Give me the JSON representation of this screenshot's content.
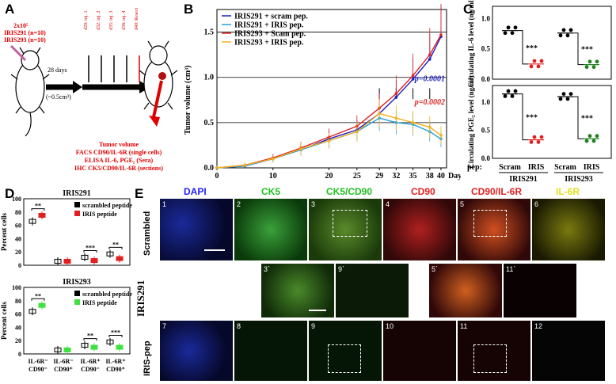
{
  "panels": {
    "A": "A",
    "B": "B",
    "C": "C",
    "D": "D",
    "E": "E"
  },
  "panelA": {
    "injection_header": [
      "2x10⁵",
      "IRIS291 (n=10)",
      "IRIS293 (n=10)"
    ],
    "days_label": "28 days",
    "volume_label": "(~0.5cm³)",
    "injections": [
      "d29: inj. 1",
      "d32: inj. 2",
      "d35: inj. 3",
      "d38: inj. 4",
      "d40: Resect"
    ],
    "readouts": [
      "Tumor volume",
      "FACS CD90/IL-6R (single cells)",
      "ELISA IL-6, PGE₂ (Sera)",
      "IHC CK5/CD90/IL-6R (sections)"
    ]
  },
  "panelB": {
    "ylabel": "Tumor volume (cm³)",
    "xlabel": "Days",
    "pvals": [
      "p=0.0001",
      "p=0.0002"
    ],
    "chart_data": {
      "type": "line",
      "x": [
        0,
        5,
        10,
        15,
        20,
        25,
        29,
        32,
        35,
        38,
        40
      ],
      "ylim": [
        0,
        1.75
      ],
      "xticks": [
        0,
        10,
        20,
        25,
        29,
        32,
        35,
        38,
        40
      ],
      "yticks": [
        0,
        0.5,
        1.0,
        1.5
      ],
      "series": [
        {
          "name": "IRIS291 + scram pep.",
          "color": "#2020c0",
          "values": [
            0,
            0.02,
            0.1,
            0.2,
            0.32,
            0.42,
            0.6,
            0.78,
            0.98,
            1.2,
            1.45
          ]
        },
        {
          "name": "IRIS291 + IRIS pep.",
          "color": "#20a0e0",
          "values": [
            0,
            0.02,
            0.1,
            0.2,
            0.3,
            0.4,
            0.55,
            0.5,
            0.48,
            0.4,
            0.32
          ]
        },
        {
          "name": "IRIS293 + Scam pep.",
          "color": "#e02020",
          "values": [
            0,
            0.03,
            0.11,
            0.22,
            0.34,
            0.46,
            0.66,
            0.82,
            1.02,
            1.25,
            1.47
          ]
        },
        {
          "name": "IRIS293 + IRIS pep.",
          "color": "#f0b020",
          "values": [
            0,
            0.03,
            0.1,
            0.21,
            0.3,
            0.4,
            0.6,
            0.55,
            0.5,
            0.45,
            0.36
          ]
        }
      ]
    }
  },
  "panelC": {
    "top_ylabel": "Circulating IL-6 level (ng/ml)",
    "bottom_ylabel": "Circulating PGE₂ level (ng/ml)",
    "pep_label": "pep:",
    "groups": [
      "Scram",
      "IRIS",
      "Scram",
      "IRIS"
    ],
    "lines": [
      "IRIS291",
      "IRIS293"
    ],
    "sig": "***",
    "top_ticks": [
      "0.0",
      "0.5",
      "1.0"
    ],
    "bottom_ticks": [
      "0.0",
      "0.5",
      "1.0"
    ]
  },
  "panelD": {
    "top_title": "IRIS291",
    "bottom_title": "IRIS293",
    "ylabel": "Percent cells",
    "yticks": [
      "0",
      "20",
      "40",
      "60",
      "80",
      "100"
    ],
    "legend_top": [
      "scrambled peptide",
      "IRIS peptide"
    ],
    "legend_bottom": [
      "scrambled peptide",
      "IRIS peptide"
    ],
    "categories": [
      "IL-6R⁻ CD90⁻",
      "IL-6R⁻ CD90⁺",
      "IL-6R⁺ CD90⁻",
      "IL-6R⁺ CD90⁺"
    ],
    "sig_top": [
      "**",
      "***",
      "**"
    ],
    "sig_bottom": [
      "**",
      "**",
      "***"
    ]
  },
  "panelE": {
    "columns": [
      "DAPI",
      "CK5",
      "CK5/CD90",
      "CD90",
      "CD90/IL-6R",
      "IL-6R"
    ],
    "rows": [
      "Scrambled",
      "IRIS-pep"
    ],
    "side": "IRIS291",
    "numbers_top": [
      "1",
      "2",
      "3",
      "4",
      "5",
      "6"
    ],
    "numbers_bottom": [
      "7",
      "8",
      "9",
      "10",
      "11",
      "12"
    ],
    "insets": [
      "3`",
      "9`",
      "5`",
      "11`"
    ]
  }
}
